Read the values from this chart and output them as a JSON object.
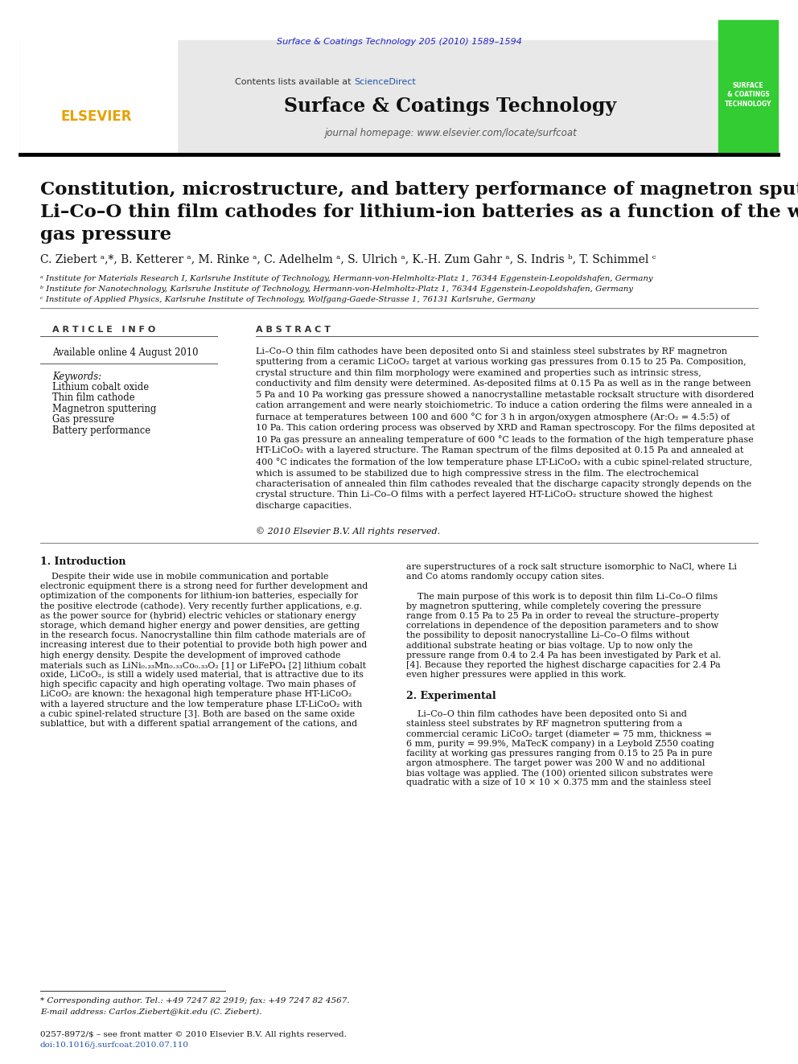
{
  "page_bg": "#ffffff",
  "top_journal_ref": "Surface & Coatings Technology 205 (2010) 1589–1594",
  "top_journal_ref_color": "#2222cc",
  "journal_name": "Surface & Coatings Technology",
  "journal_homepage": "journal homepage: www.elsevier.com/locate/surfcoat",
  "contents_text": "Contents lists available at ",
  "contents_sciencedirect": "ScienceDirect",
  "contents_sciencedirect_color": "#2255aa",
  "elsevier_color": "#e8a000",
  "header_bg": "#e8e8e8",
  "journal_logo_bg": "#33cc33",
  "article_title_line1": "Constitution, microstructure, and battery performance of magnetron sputtered",
  "article_title_line2": "Li–Co–O thin film cathodes for lithium-ion batteries as a function of the working",
  "article_title_line3": "gas pressure",
  "authors": "C. Ziebert ᵃ,*, B. Ketterer ᵃ, M. Rinke ᵃ, C. Adelhelm ᵃ, S. Ulrich ᵃ, K.-H. Zum Gahr ᵃ, S. Indris ᵇ, T. Schimmel ᶜ",
  "affil_a": "ᵃ Institute for Materials Research I, Karlsruhe Institute of Technology, Hermann-von-Helmholtz-Platz 1, 76344 Eggenstein-Leopoldshafen, Germany",
  "affil_b": "ᵇ Institute for Nanotechnology, Karlsruhe Institute of Technology, Hermann-von-Helmholtz-Platz 1, 76344 Eggenstein-Leopoldshafen, Germany",
  "affil_c": "ᶜ Institute of Applied Physics, Karlsruhe Institute of Technology, Wolfgang-Gaede-Strasse 1, 76131 Karlsruhe, Germany",
  "article_info_label": "A R T I C L E   I N F O",
  "abstract_label": "A B S T R A C T",
  "available_online": "Available online 4 August 2010",
  "keywords_label": "Keywords:",
  "keywords": [
    "Lithium cobalt oxide",
    "Thin film cathode",
    "Magnetron sputtering",
    "Gas pressure",
    "Battery performance"
  ],
  "abstract_text": "Li–Co–O thin film cathodes have been deposited onto Si and stainless steel substrates by RF magnetron\nsputtering from a ceramic LiCoO₂ target at various working gas pressures from 0.15 to 25 Pa. Composition,\ncrystal structure and thin film morphology were examined and properties such as intrinsic stress,\nconductivity and film density were determined. As-deposited films at 0.15 Pa as well as in the range between\n5 Pa and 10 Pa working gas pressure showed a nanocrystalline metastable rocksalt structure with disordered\ncation arrangement and were nearly stoichiometric. To induce a cation ordering the films were annealed in a\nfurnace at temperatures between 100 and 600 °C for 3 h in argon/oxygen atmosphere (Ar:O₂ = 4.5:5) of\n10 Pa. This cation ordering process was observed by XRD and Raman spectroscopy. For the films deposited at\n10 Pa gas pressure an annealing temperature of 600 °C leads to the formation of the high temperature phase\nHT-LiCoO₂ with a layered structure. The Raman spectrum of the films deposited at 0.15 Pa and annealed at\n400 °C indicates the formation of the low temperature phase LT-LiCoO₂ with a cubic spinel-related structure,\nwhich is assumed to be stabilized due to high compressive stress in the film. The electrochemical\ncharacterisation of annealed thin film cathodes revealed that the discharge capacity strongly depends on the\ncrystal structure. Thin Li–Co–O films with a perfect layered HT-LiCoO₂ structure showed the highest\ndischarge capacities.",
  "copyright_line": "© 2010 Elsevier B.V. All rights reserved.",
  "section1_title": "1. Introduction",
  "section1_col1_lines": [
    "    Despite their wide use in mobile communication and portable",
    "electronic equipment there is a strong need for further development and",
    "optimization of the components for lithium-ion batteries, especially for",
    "the positive electrode (cathode). Very recently further applications, e.g.",
    "as the power source for (hybrid) electric vehicles or stationary energy",
    "storage, which demand higher energy and power densities, are getting",
    "in the research focus. Nanocrystalline thin film cathode materials are of",
    "increasing interest due to their potential to provide both high power and",
    "high energy density. Despite the development of improved cathode",
    "materials such as LiNi₀.₃₃Mn₀.₃₃Co₀.₃₃O₂ [1] or LiFePO₄ [2] lithium cobalt",
    "oxide, LiCoO₂, is still a widely used material, that is attractive due to its",
    "high specific capacity and high operating voltage. Two main phases of",
    "LiCoO₂ are known: the hexagonal high temperature phase HT-LiCoO₂",
    "with a layered structure and the low temperature phase LT-LiCoO₂ with",
    "a cubic spinel-related structure [3]. Both are based on the same oxide",
    "sublattice, but with a different spatial arrangement of the cations, and"
  ],
  "section1_col2_lines": [
    "are superstructures of a rock salt structure isomorphic to NaCl, where Li",
    "and Co atoms randomly occupy cation sites.",
    "",
    "    The main purpose of this work is to deposit thin film Li–Co–O films",
    "by magnetron sputtering, while completely covering the pressure",
    "range from 0.15 Pa to 25 Pa in order to reveal the structure–property",
    "correlations in dependence of the deposition parameters and to show",
    "the possibility to deposit nanocrystalline Li–Co–O films without",
    "additional substrate heating or bias voltage. Up to now only the",
    "pressure range from 0.4 to 2.4 Pa has been investigated by Park et al.",
    "[4]. Because they reported the highest discharge capacities for 2.4 Pa",
    "even higher pressures were applied in this work.",
    "",
    "2. Experimental",
    "",
    "    Li–Co–O thin film cathodes have been deposited onto Si and",
    "stainless steel substrates by RF magnetron sputtering from a",
    "commercial ceramic LiCoO₂ target (diameter = 75 mm, thickness =",
    "6 mm, purity = 99.9%, MaTecK company) in a Leybold Z550 coating",
    "facility at working gas pressures ranging from 0.15 to 25 Pa in pure",
    "argon atmosphere. The target power was 200 W and no additional",
    "bias voltage was applied. The (100) oriented silicon substrates were",
    "quadratic with a size of 10 × 10 × 0.375 mm and the stainless steel"
  ],
  "footnote_star": "* Corresponding author. Tel.: +49 7247 82 2919; fax: +49 7247 82 4567.",
  "footnote_email": "E-mail address: Carlos.Ziebert@kit.edu (C. Ziebert).",
  "footer_line1": "0257-8972/$ – see front matter © 2010 Elsevier B.V. All rights reserved.",
  "footer_line2": "doi:10.1016/j.surfcoat.2010.07.110",
  "footer_line2_color": "#2255aa"
}
